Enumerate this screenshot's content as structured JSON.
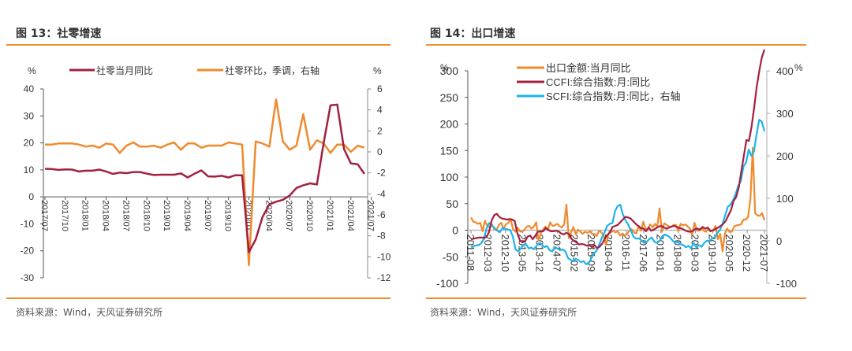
{
  "figures": [
    {
      "title": "图 13：社零增速",
      "source": "资料来源：Wind，天风证券研究所"
    },
    {
      "title": "图 14：出口增速",
      "source": "资料来源：Wind，天风证券研究所"
    }
  ],
  "colors": {
    "rule": "#f08a2c",
    "maroon": "#a3203f",
    "orange": "#f08a2c",
    "blue": "#1cb4ea"
  },
  "chart_data": [
    {
      "type": "line",
      "title": "社零增速",
      "left_unit": "%",
      "right_unit": "%",
      "ylim_left": [
        -30,
        40
      ],
      "yticks_left": [
        40,
        30,
        20,
        10,
        0,
        -10,
        -20,
        -30
      ],
      "ylim_right": [
        -12,
        6
      ],
      "yticks_right": [
        6,
        4,
        2,
        0,
        -2,
        -4,
        -6,
        -8,
        -10,
        -12
      ],
      "x_start": "2017/07",
      "xtick_labels": [
        "2017/07",
        "2017/10",
        "2018/01",
        "2018/04",
        "2018/07",
        "2018/10",
        "2019/01",
        "2019/04",
        "2019/07",
        "2019/10",
        "2020/01",
        "2020/04",
        "2020/07",
        "2020/10",
        "2021/01",
        "2021/04",
        "2021/07"
      ],
      "legend": "top",
      "series": [
        {
          "name": "社零当月同比",
          "axis": "left",
          "color": "#a3203f",
          "values": [
            10.4,
            10.3,
            10.0,
            10.2,
            10.1,
            9.4,
            9.7,
            9.7,
            10.1,
            9.4,
            8.5,
            9.0,
            8.8,
            9.2,
            9.2,
            8.6,
            8.1,
            8.2,
            8.2,
            8.2,
            8.7,
            7.2,
            8.6,
            9.8,
            7.6,
            7.5,
            7.8,
            7.2,
            8.0,
            8.0,
            -20.5,
            -15.8,
            -7.5,
            -2.8,
            -1.8,
            -1.1,
            0.5,
            3.3,
            4.3,
            5.0,
            4.6,
            20.0,
            33.9,
            34.2,
            17.7,
            12.4,
            12.1,
            8.5
          ]
        },
        {
          "name": "社零环比，季调，右轴",
          "axis": "right",
          "color": "#f08a2c",
          "values": [
            0.7,
            0.7,
            0.8,
            0.8,
            0.8,
            0.7,
            0.5,
            0.6,
            0.4,
            0.8,
            0.7,
            -0.1,
            0.6,
            0.9,
            0.5,
            0.5,
            0.6,
            0.4,
            0.7,
            0.9,
            0.2,
            0.8,
            0.8,
            0.4,
            0.6,
            0.6,
            0.6,
            0.9,
            0.8,
            0.7,
            -10.8,
            1.0,
            0.8,
            0.5,
            5.0,
            1.0,
            0.2,
            0.6,
            3.6,
            0.2,
            1.1,
            0.8,
            -0.1,
            0.7,
            0.7,
            0.0,
            0.6,
            0.4
          ]
        }
      ]
    },
    {
      "type": "line",
      "title": "出口增速",
      "left_unit": "%",
      "right_unit": "%",
      "ylim_left": [
        -100,
        300
      ],
      "yticks_left": [
        300,
        250,
        200,
        150,
        100,
        50,
        0,
        -50,
        -100
      ],
      "ylim_right": [
        -100,
        400
      ],
      "yticks_right": [
        400,
        300,
        200,
        100,
        0,
        -100
      ],
      "x_start": "2011-08",
      "xtick_labels": [
        "2011-08",
        "2012-03",
        "2012-10",
        "2013-05",
        "2013-12",
        "2014-07",
        "2015-02",
        "2015-09",
        "2016-04",
        "2016-11",
        "2017-06",
        "2018-01",
        "2018-08",
        "2019-03",
        "2019-10",
        "2020-05",
        "2020-12",
        "2021-07"
      ],
      "legend": "top-left",
      "series": [
        {
          "name": "出口金额:当月同比",
          "axis": "left",
          "color": "#f08a2c",
          "values": [
            24,
            16,
            15,
            12,
            14,
            -2,
            18,
            8,
            5,
            11,
            2,
            1,
            10,
            14,
            3,
            11,
            14,
            21,
            3,
            -3,
            5,
            -2,
            -3,
            1,
            7,
            8,
            3,
            7,
            15,
            -19,
            -6,
            1,
            7,
            0,
            15,
            8,
            9,
            12,
            8,
            5,
            11,
            48,
            -15,
            -4,
            6,
            -8,
            1,
            -3,
            -7,
            -3,
            -5,
            -2,
            -7,
            -7,
            -11,
            -1,
            -4,
            -10,
            -28,
            -7,
            -4,
            -1,
            -4,
            -2,
            -10,
            -6,
            -10,
            -7,
            -1,
            2,
            -4,
            -6,
            8,
            -1,
            16,
            2,
            3,
            11,
            5,
            12,
            7,
            41,
            -3,
            13,
            10,
            7,
            6,
            10,
            10,
            -2,
            12,
            9,
            11,
            7,
            3,
            -8,
            14,
            -1,
            -1,
            5,
            -1,
            -3,
            3,
            -1,
            -1,
            8,
            -17,
            -7,
            -40,
            -7,
            3,
            -3,
            -3,
            7,
            9,
            10,
            11,
            20,
            20,
            25,
            60,
            155,
            32,
            28,
            27,
            32,
            19
          ]
        },
        {
          "name": "CCFI:综合指数:月:同比",
          "axis": "left",
          "color": "#a3203f",
          "values": [
            -17,
            -16,
            -15,
            -14,
            -14,
            -14,
            -13,
            -4,
            18,
            28,
            31,
            25,
            22,
            21,
            20,
            21,
            20,
            17,
            -5,
            -19,
            -23,
            -21,
            -12,
            -10,
            -17,
            -10,
            -3,
            -2,
            -2,
            4,
            1,
            -2,
            -2,
            -1,
            -2,
            -6,
            -8,
            -5,
            -7,
            -16,
            -20,
            -23,
            -27,
            -26,
            -27,
            -29,
            -28,
            -32,
            -28,
            -34,
            -31,
            -25,
            -16,
            -9,
            -4,
            6,
            8,
            10,
            15,
            20,
            25,
            24,
            22,
            17,
            12,
            8,
            4,
            3,
            -2,
            5,
            -1,
            1,
            4,
            7,
            8,
            5,
            3,
            5,
            7,
            8,
            6,
            4,
            3,
            0,
            -2,
            -3,
            -2,
            2,
            3,
            1,
            6,
            3,
            5,
            -2,
            0,
            2,
            5,
            8,
            12,
            18,
            28,
            38,
            55,
            62,
            80,
            110,
            140,
            170,
            168,
            195,
            230,
            270,
            300,
            325,
            340
          ]
        },
        {
          "name": "SCFI:综合指数:月:同比，右轴",
          "axis": "right",
          "color": "#1cb4ea",
          "values": [
            -15,
            -12,
            -11,
            -10,
            -5,
            6,
            30,
            42,
            36,
            30,
            24,
            20,
            30,
            28,
            27,
            25,
            10,
            -20,
            -25,
            -18,
            -10,
            -8,
            -18,
            -16,
            -20,
            -12,
            -5,
            -8,
            -15,
            -12,
            -22,
            -25,
            -15,
            -18,
            -22,
            -20,
            -25,
            -40,
            -45,
            -48,
            -42,
            -46,
            -50,
            -48,
            -55,
            -52,
            -40,
            -30,
            -22,
            -8,
            8,
            20,
            35,
            40,
            42,
            70,
            82,
            85,
            62,
            48,
            38,
            25,
            10,
            5,
            6,
            2,
            -5,
            -3,
            4,
            8,
            -2,
            -5,
            0,
            10,
            15,
            12,
            8,
            0,
            -5,
            -2,
            -8,
            -10,
            -15,
            -12,
            -18,
            -5,
            -15,
            -10,
            -14,
            -5,
            0,
            0,
            5,
            8,
            18,
            25,
            40,
            60,
            80,
            85,
            95,
            110,
            130,
            140,
            175,
            185,
            215,
            200,
            210,
            250,
            285,
            280,
            258
          ]
        }
      ]
    }
  ]
}
